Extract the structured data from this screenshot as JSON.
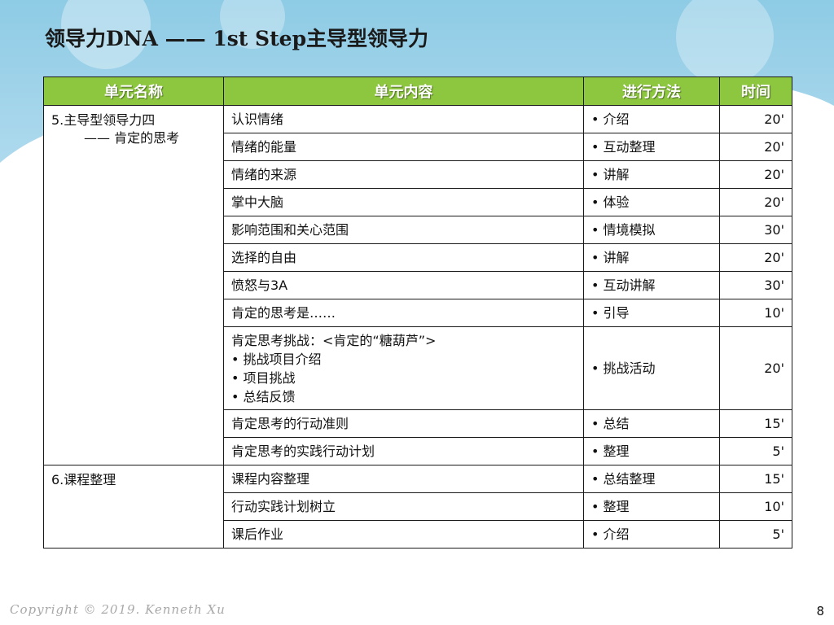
{
  "slide": {
    "title": "领导力DNA —— 1st Step主导型领导力",
    "copyright": "Copyright © 2019. Kenneth Xu",
    "page_number": "8"
  },
  "colors": {
    "header_green": "#8dc63f",
    "sky_blue": "#a8d4ea",
    "cloud": "#ffffff"
  },
  "table": {
    "headers": [
      "单元名称",
      "单元内容",
      "进行方法",
      "时间"
    ],
    "groups": [
      {
        "unit_line1": "5.主导型领导力四",
        "unit_line2": "—— 肯定的思考",
        "rows": [
          {
            "content": "认识情绪",
            "method": "介绍",
            "time": "20'"
          },
          {
            "content": "情绪的能量",
            "method": "互动整理",
            "time": "20'"
          },
          {
            "content": "情绪的来源",
            "method": "讲解",
            "time": "20'"
          },
          {
            "content": "掌中大脑",
            "method": "体验",
            "time": "20'"
          },
          {
            "content": "影响范围和关心范围",
            "method": "情境模拟",
            "time": "30'"
          },
          {
            "content": "选择的自由",
            "method": "讲解",
            "time": "20'"
          },
          {
            "content": "愤怒与3A",
            "method": "互动讲解",
            "time": "30'"
          },
          {
            "content": "肯定的思考是……",
            "method": "引导",
            "time": "10'"
          },
          {
            "content": "肯定思考挑战：<肯定的“糖葫芦”>",
            "sub_items": [
              "挑战项目介绍",
              "项目挑战",
              "总结反馈"
            ],
            "method": "挑战活动",
            "time": "20'"
          },
          {
            "content": "肯定思考的行动准则",
            "method": "总结",
            "time": "15'"
          },
          {
            "content": "肯定思考的实践行动计划",
            "method": "整理",
            "time": "5'"
          }
        ]
      },
      {
        "unit_line1": "6.课程整理",
        "rows": [
          {
            "content": "课程内容整理",
            "method": "总结整理",
            "time": "15'"
          },
          {
            "content": "行动实践计划树立",
            "method": "整理",
            "time": "10'"
          },
          {
            "content": "课后作业",
            "method": "介绍",
            "time": "5'"
          }
        ]
      }
    ]
  }
}
